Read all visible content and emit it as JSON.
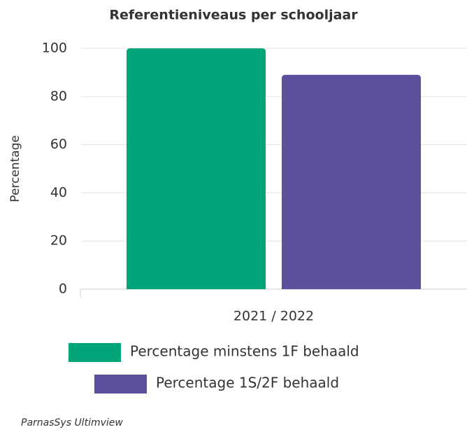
{
  "chart_data": {
    "type": "bar",
    "title": "Referentieniveaus per schooljaar",
    "ylabel": "Percentage",
    "categories": [
      "2021 / 2022"
    ],
    "series": [
      {
        "name": "Percentage minstens 1F behaald",
        "color": "#00a67a",
        "values": [
          100
        ]
      },
      {
        "name": "Percentage 1S/2F behaald",
        "color": "#5e4f9c",
        "values": [
          89
        ]
      }
    ],
    "ylim": [
      0,
      100
    ],
    "yticks": [
      0,
      20,
      40,
      60,
      80,
      100
    ],
    "grid": true
  },
  "footer": {
    "credit": "ParnasSys Ultimview"
  }
}
